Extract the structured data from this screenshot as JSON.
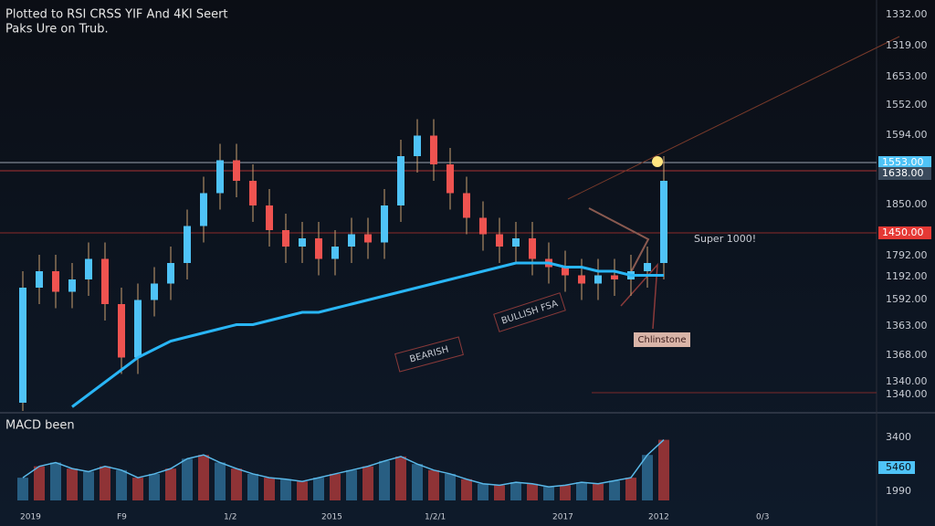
{
  "chart_data": {
    "type": "candlestick",
    "title": "Plotted to RSI CRSS YIF And 4KI Seert",
    "subtitle": "Paks Ure on Trub.",
    "up_color": "#4fc3f7",
    "down_color": "#ef5350",
    "ylim": [
      0,
      100
    ],
    "open": [
      2,
      30,
      34,
      29,
      32,
      37,
      26,
      13,
      27,
      31,
      36,
      45,
      53,
      61,
      56,
      50,
      44,
      40,
      42,
      37,
      40,
      43,
      41,
      50,
      62,
      67,
      60,
      53,
      47,
      43,
      40,
      42,
      37,
      35,
      33,
      31,
      33,
      32,
      34,
      36
    ],
    "close": [
      30,
      34,
      29,
      32,
      37,
      26,
      13,
      27,
      31,
      36,
      45,
      53,
      61,
      56,
      50,
      44,
      40,
      42,
      37,
      40,
      43,
      41,
      50,
      62,
      67,
      60,
      53,
      47,
      43,
      40,
      42,
      37,
      35,
      33,
      31,
      33,
      32,
      34,
      36,
      56
    ],
    "high": [
      34,
      38,
      38,
      36,
      41,
      41,
      30,
      31,
      35,
      40,
      49,
      57,
      65,
      65,
      60,
      54,
      48,
      46,
      46,
      44,
      47,
      47,
      54,
      66,
      71,
      71,
      64,
      57,
      51,
      47,
      46,
      46,
      41,
      39,
      37,
      37,
      37,
      38,
      40,
      62
    ],
    "low": [
      0,
      26,
      25,
      25,
      28,
      22,
      9,
      9,
      23,
      27,
      32,
      41,
      49,
      52,
      46,
      40,
      36,
      36,
      33,
      33,
      36,
      37,
      37,
      46,
      58,
      56,
      49,
      43,
      39,
      36,
      36,
      33,
      31,
      29,
      27,
      27,
      28,
      28,
      30,
      32
    ],
    "moving_average": {
      "color": "#29b6f6",
      "values": [
        null,
        null,
        null,
        1,
        4,
        7,
        10,
        13,
        15,
        17,
        18,
        19,
        20,
        21,
        21,
        22,
        23,
        24,
        24,
        25,
        26,
        27,
        28,
        29,
        30,
        31,
        32,
        33,
        34,
        35,
        36,
        36,
        36,
        35,
        35,
        34,
        34,
        33,
        33,
        33
      ]
    },
    "macd": {
      "label": "MACD been",
      "ylim": [
        0,
        100
      ],
      "values": [
        30,
        45,
        50,
        42,
        38,
        45,
        40,
        30,
        35,
        42,
        55,
        60,
        50,
        42,
        35,
        30,
        28,
        25,
        30,
        35,
        40,
        45,
        52,
        58,
        48,
        40,
        35,
        28,
        22,
        20,
        24,
        22,
        18,
        20,
        24,
        22,
        26,
        30,
        60,
        80
      ]
    }
  },
  "price_axis_labels": [
    "1332.00",
    "1319.00",
    "1653.00",
    "1552.00",
    "1594.00",
    "1850.00",
    "1792.00",
    "1192.00",
    "1592.00",
    "1363.00",
    "1368.00",
    "1340.00",
    "1340.00"
  ],
  "price_tags": [
    "1553.00",
    "1638.00",
    "1450.00"
  ],
  "macd_axis_labels": [
    "3400",
    "5460",
    "1990"
  ],
  "x_labels": [
    "2019",
    "F9",
    "1/2",
    "2015",
    "1/2/1",
    "2017",
    "2012",
    "0/3"
  ],
  "annotations": [
    "Super 1000!",
    "Chlinstone",
    "BEARISH",
    "BULLISH FSA"
  ]
}
